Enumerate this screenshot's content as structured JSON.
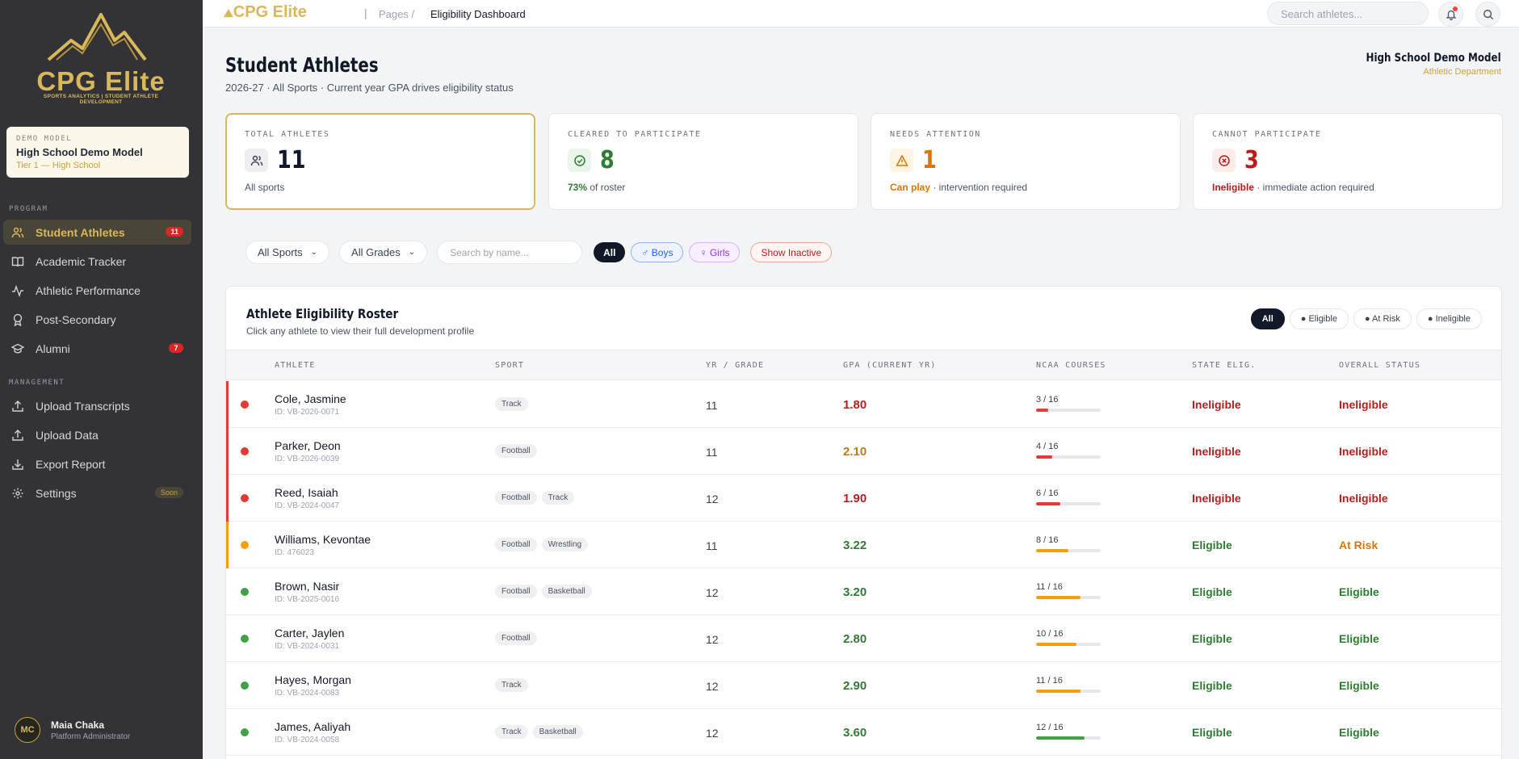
{
  "sidebar": {
    "logo_text": "CPG Elite",
    "logo_tagline": "SPORTS ANALYTICS | STUDENT ATHLETE DEVELOPMENT",
    "model_label": "DEMO MODEL",
    "model_name": "High School Demo Model",
    "model_tier": "Tier 1 — High School",
    "program_label": "PROGRAM",
    "management_label": "MANAGEMENT",
    "nav": [
      {
        "label": "Student Athletes",
        "badge": "11",
        "icon": "users-icon"
      },
      {
        "label": "Academic Tracker",
        "icon": "book-icon"
      },
      {
        "label": "Athletic Performance",
        "icon": "activity-icon"
      },
      {
        "label": "Post-Secondary",
        "icon": "award-icon"
      },
      {
        "label": "Alumni",
        "badge": "7",
        "icon": "graduation-cap-icon"
      },
      {
        "label": "Upload Transcripts",
        "icon": "upload-icon"
      },
      {
        "label": "Upload Data",
        "icon": "upload-icon"
      },
      {
        "label": "Export Report",
        "icon": "download-icon"
      },
      {
        "label": "Settings",
        "tag": "Soon",
        "icon": "gear-icon"
      }
    ],
    "user": {
      "initials": "MC",
      "name": "Maia Chaka",
      "role": "Platform Administrator"
    }
  },
  "topbar": {
    "logo": "CPG Elite",
    "breadcrumb_pages": "Pages /",
    "breadcrumb_current": "Eligibility Dashboard",
    "search_placeholder": "Search athletes..."
  },
  "header": {
    "title": "Student Athletes",
    "subtitle": "2026-27 · All Sports · Current year GPA drives eligibility status",
    "school_name": "High School Demo Model",
    "school_dept": "Athletic Department"
  },
  "stats": [
    {
      "label": "TOTAL ATHLETES",
      "value": "11",
      "sub_strong": "",
      "sub": "All sports",
      "color": "#111827"
    },
    {
      "label": "CLEARED TO PARTICIPATE",
      "value": "8",
      "sub_strong": "73%",
      "sub": " of roster",
      "color": "#2e7d32"
    },
    {
      "label": "NEEDS ATTENTION",
      "value": "1",
      "sub_strong": "Can play",
      "sub": " · intervention required",
      "color": "#d97706"
    },
    {
      "label": "CANNOT PARTICIPATE",
      "value": "3",
      "sub_strong": "Ineligible",
      "sub": " · immediate action required",
      "color": "#b91c1c"
    }
  ],
  "filters": {
    "sport": "All Sports",
    "grade": "All Grades",
    "search_placeholder": "Search by name...",
    "all": "All",
    "boys": "♂ Boys",
    "girls": "♀ Girls",
    "inactive": "Show Inactive"
  },
  "roster": {
    "title": "Athlete Eligibility Roster",
    "subtitle": "Click any athlete to view their full development profile",
    "tabs": [
      "All",
      "● Eligible",
      "● At Risk",
      "● Ineligible"
    ],
    "columns": [
      "ATHLETE",
      "SPORT",
      "YR / GRADE",
      "GPA (CURRENT YR)",
      "NCAA COURSES",
      "STATE ELIG.",
      "OVERALL STATUS"
    ],
    "rows": [
      {
        "name": "Cole, Jasmine",
        "id": "ID: VB-2026-0071",
        "sports": [
          "Track"
        ],
        "grade": "11",
        "gpa": "1.80",
        "courses": "3 / 16",
        "courses_done": 3,
        "state": "Ineligible",
        "overall": "Ineligible",
        "level": "red"
      },
      {
        "name": "Parker, Deon",
        "id": "ID: VB-2026-0039",
        "sports": [
          "Football"
        ],
        "grade": "11",
        "gpa": "2.10",
        "courses": "4 / 16",
        "courses_done": 4,
        "state": "Ineligible",
        "overall": "Ineligible",
        "level": "red"
      },
      {
        "name": "Reed, Isaiah",
        "id": "ID: VB-2024-0047",
        "sports": [
          "Football",
          "Track"
        ],
        "grade": "12",
        "gpa": "1.90",
        "courses": "6 / 16",
        "courses_done": 6,
        "state": "Ineligible",
        "overall": "Ineligible",
        "level": "red"
      },
      {
        "name": "Williams, Kevontae",
        "id": "ID: 476023",
        "sports": [
          "Football",
          "Wrestling"
        ],
        "grade": "11",
        "gpa": "3.22",
        "courses": "8 / 16",
        "courses_done": 8,
        "state": "Eligible",
        "overall": "At Risk",
        "level": "amber"
      },
      {
        "name": "Brown, Nasir",
        "id": "ID: VB-2025-0016",
        "sports": [
          "Football",
          "Basketball"
        ],
        "grade": "12",
        "gpa": "3.20",
        "courses": "11 / 16",
        "courses_done": 11,
        "state": "Eligible",
        "overall": "Eligible",
        "level": "green"
      },
      {
        "name": "Carter, Jaylen",
        "id": "ID: VB-2024-0031",
        "sports": [
          "Football"
        ],
        "grade": "12",
        "gpa": "2.80",
        "courses": "10 / 16",
        "courses_done": 10,
        "state": "Eligible",
        "overall": "Eligible",
        "level": "green"
      },
      {
        "name": "Hayes, Morgan",
        "id": "ID: VB-2024-0083",
        "sports": [
          "Track"
        ],
        "grade": "12",
        "gpa": "2.90",
        "courses": "11 / 16",
        "courses_done": 11,
        "state": "Eligible",
        "overall": "Eligible",
        "level": "green"
      },
      {
        "name": "James, Aaliyah",
        "id": "ID: VB-2024-0058",
        "sports": [
          "Track",
          "Basketball"
        ],
        "grade": "12",
        "gpa": "3.60",
        "courses": "12 / 16",
        "courses_done": 12,
        "state": "Eligible",
        "overall": "Eligible",
        "level": "green"
      }
    ]
  },
  "colors": {
    "red": "#e53935",
    "amber": "#f59e0b",
    "green": "#43a047",
    "gold": "#d9b85a",
    "text_red": "#b91c1c",
    "text_green": "#2e7d32",
    "text_amber": "#d97706",
    "gpa_red": "#b91c1c",
    "gpa_amber": "#c27c0e",
    "gpa_green": "#2e7d32"
  }
}
